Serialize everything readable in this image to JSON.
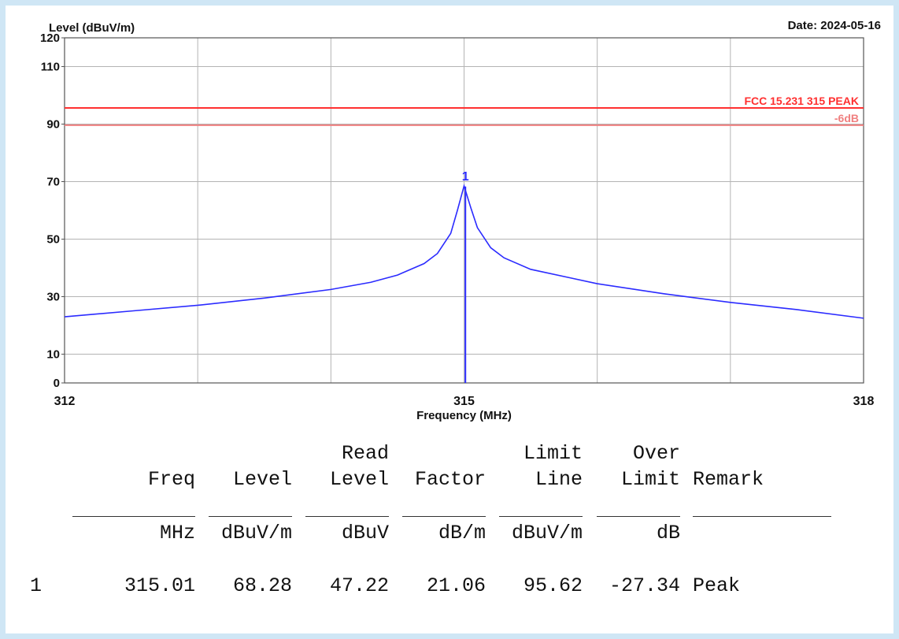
{
  "chart_data": {
    "type": "line",
    "ylabel": "Level (dBuV/m)",
    "xlabel": "Frequency (MHz)",
    "date": "Date: 2024-05-16",
    "xlim": [
      312,
      318
    ],
    "ylim": [
      0,
      120
    ],
    "x_ticks": [
      {
        "value": 312,
        "label": "312"
      },
      {
        "value": 315,
        "label": "315"
      },
      {
        "value": 318,
        "label": "318"
      }
    ],
    "x_grid": [
      312,
      313,
      314,
      315,
      316,
      317,
      318
    ],
    "y_ticks": [
      {
        "value": 0,
        "label": "0"
      },
      {
        "value": 10,
        "label": "10"
      },
      {
        "value": 30,
        "label": "30"
      },
      {
        "value": 50,
        "label": "50"
      },
      {
        "value": 70,
        "label": "70"
      },
      {
        "value": 90,
        "label": "90"
      },
      {
        "value": 110,
        "label": "110"
      },
      {
        "value": 120,
        "label": "120"
      }
    ],
    "y_grid": [
      10,
      30,
      50,
      70,
      90,
      110
    ],
    "grid": true,
    "limit_lines": [
      {
        "label": "FCC 15.231 315  PEAK",
        "value": 95.62,
        "color": "#ff3030"
      },
      {
        "label": "-6dB",
        "value": 89.62,
        "color": "#f08080"
      }
    ],
    "series": [
      {
        "color": "#2b2bff",
        "x": [
          312,
          312.5,
          313,
          313.5,
          314,
          314.3,
          314.5,
          314.7,
          314.8,
          314.9,
          314.95,
          315,
          315.05,
          315.1,
          315.2,
          315.3,
          315.5,
          315.8,
          316,
          316.5,
          317,
          317.5,
          318
        ],
        "y": [
          23,
          25,
          27,
          29.5,
          32.5,
          35,
          37.5,
          41.5,
          45,
          52,
          60,
          68.5,
          61,
          54,
          47,
          43.5,
          39.5,
          36.5,
          34.5,
          31,
          28,
          25.5,
          22.5
        ]
      }
    ],
    "marker": {
      "label": "1",
      "x": 315.01,
      "y": 68.28,
      "color": "#2b2bff"
    }
  },
  "table": {
    "headers_top": [
      "",
      "",
      "",
      "Read",
      "",
      "Limit",
      "Over",
      ""
    ],
    "headers_mid": [
      "",
      "Freq",
      "Level",
      "Level",
      "Factor",
      "Line",
      "Limit",
      "Remark"
    ],
    "units": [
      "",
      "MHz",
      "dBuV/m",
      "dBuV",
      "dB/m",
      "dBuV/m",
      "dB",
      ""
    ],
    "rows": [
      [
        "1",
        "315.01",
        "68.28",
        "47.22",
        "21.06",
        "95.62",
        "-27.34",
        "Peak"
      ]
    ]
  }
}
